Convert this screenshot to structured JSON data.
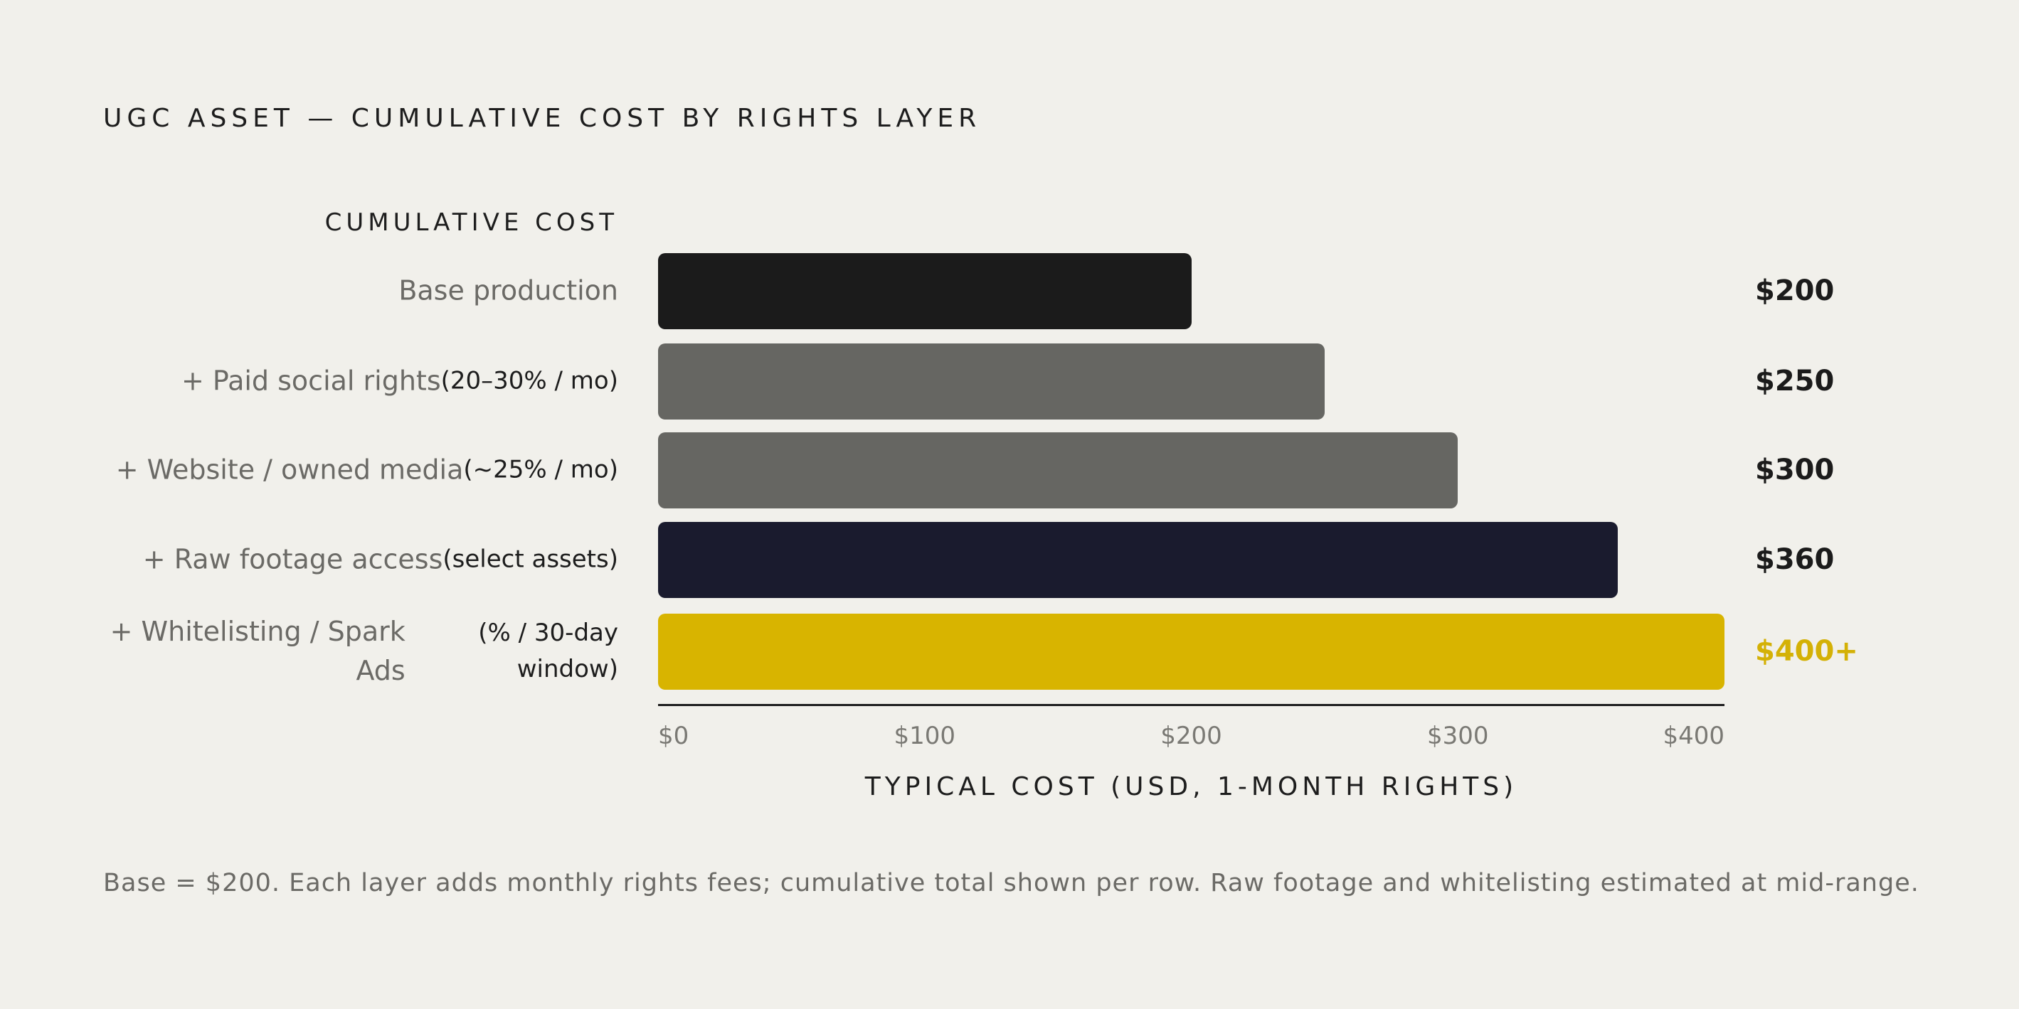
{
  "chart_data": {
    "type": "bar",
    "orientation": "horizontal",
    "title": "UGC ASSET — CUMULATIVE COST BY RIGHTS LAYER",
    "y_label": "CUMULATIVE COST",
    "x_label": "TYPICAL COST (USD, 1-MONTH RIGHTS)",
    "categories": [
      "Base production",
      "+ Paid social rights",
      "+ Website / owned media",
      "+ Raw footage access",
      "+ Whitelisting / Spark Ads"
    ],
    "notes": [
      null,
      "(20–30% / mo)",
      "(~25% / mo)",
      "(select assets)",
      "(% / 30-day window)"
    ],
    "values": [
      200,
      250,
      300,
      360,
      400
    ],
    "value_labels": [
      "$200",
      "$250",
      "$300",
      "$360",
      "$400+"
    ],
    "colors": [
      "#1b1b1b",
      "#666662",
      "#666662",
      "#1a1b2e",
      "#d8b400"
    ],
    "value_label_colors": [
      "#1b1b1b",
      "#1b1b1b",
      "#1b1b1b",
      "#1b1b1b",
      "#d4b106"
    ],
    "xlim": [
      0,
      400
    ],
    "xticks": [
      {
        "value": 0,
        "label": "$0"
      },
      {
        "value": 100,
        "label": "$100"
      },
      {
        "value": 200,
        "label": "$200"
      },
      {
        "value": 300,
        "label": "$300"
      },
      {
        "value": 400,
        "label": "$400"
      }
    ],
    "footnote": "Base = $200. Each layer adds monthly rights fees; cumulative total shown per row. Raw footage and whitelisting estimated at mid-range."
  }
}
